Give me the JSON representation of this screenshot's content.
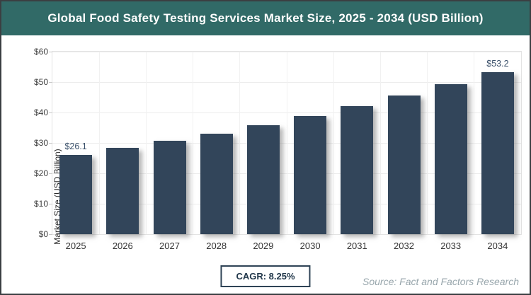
{
  "header": {
    "title": "Global Food Safety Testing Services Market Size, 2025 - 2034 (USD Billion)"
  },
  "chart_data": {
    "type": "bar",
    "title": "Global Food Safety Testing Services Market Size, 2025 - 2034 (USD Billion)",
    "categories": [
      "2025",
      "2026",
      "2027",
      "2028",
      "2029",
      "2030",
      "2031",
      "2032",
      "2033",
      "2034"
    ],
    "values": [
      26.1,
      28.3,
      30.6,
      33.1,
      35.8,
      38.8,
      42.0,
      45.5,
      49.2,
      53.2
    ],
    "data_labels": [
      {
        "index": 0,
        "text": "$26.1"
      },
      {
        "index": 9,
        "text": "$53.2"
      }
    ],
    "xlabel": "",
    "ylabel": "Market Size (USD Billion)",
    "ylim": [
      0,
      60
    ],
    "yticks": [
      {
        "value": 0,
        "label": "$0"
      },
      {
        "value": 10,
        "label": "$10"
      },
      {
        "value": 20,
        "label": "$20"
      },
      {
        "value": 30,
        "label": "$30"
      },
      {
        "value": 40,
        "label": "$40"
      },
      {
        "value": 50,
        "label": "$50"
      },
      {
        "value": 60,
        "label": "$60"
      }
    ],
    "grid": true,
    "legend": "none",
    "bar_color": "#32455a",
    "label_color": "#3a506a"
  },
  "footer": {
    "cagr_label": "CAGR: 8.25%",
    "source": "Source: Fact and Factors Research"
  },
  "colors": {
    "header_bg": "#316a67",
    "header_text": "#ffffff",
    "bar": "#32455a",
    "outer_border": "#3b3f42",
    "gridline": "#ececec",
    "source_text": "#98a6ac",
    "cagr_border": "#2f4356"
  }
}
